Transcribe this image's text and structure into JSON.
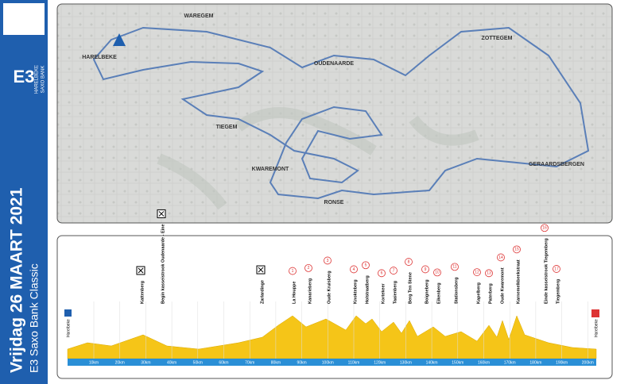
{
  "banner": {
    "date": "Vrijdag 26 MAART 2021",
    "race": "E3 Saxo Bank Classic",
    "logo": "E3",
    "city": "HARELBEKE",
    "sponsor": "SAXO BANK"
  },
  "map": {
    "towns": [
      "WAREGEM",
      "HARELBEKE",
      "ZOTTEGEM",
      "OUDENAARDE",
      "TIEGEM",
      "KWAREMONT",
      "RONSE",
      "GERAARDSBERGEN"
    ]
  },
  "profile": {
    "start": "Harelbeke",
    "finish": "Harelbeke",
    "km": [
      "10km",
      "20km",
      "30km",
      "40km",
      "50km",
      "60km",
      "70km",
      "80km",
      "90km",
      "100km",
      "110km",
      "120km",
      "130km",
      "140km",
      "150km",
      "160km",
      "170km",
      "180km",
      "190km",
      "200km"
    ],
    "climbs": [
      {
        "name": "Kattenberg"
      },
      {
        "name": "Begin kasseistrook Oudenaarde - Eine"
      },
      {
        "name": "Zarlardinge"
      },
      {
        "name": "La Houppe",
        "number": 1
      },
      {
        "name": "Kanarieberg",
        "number": 2
      },
      {
        "name": "Oude Kruisberg",
        "number": 3
      },
      {
        "name": "Knokteberg",
        "number": 4
      },
      {
        "name": "Holstraatberg",
        "number": 5
      },
      {
        "name": "Kortekeer",
        "number": 6
      },
      {
        "name": "Taaienberg",
        "number": 7
      },
      {
        "name": "Berg Ten Stene",
        "number": 8
      },
      {
        "name": "Boigneberg",
        "number": 9
      },
      {
        "name": "Eikenberg",
        "number": 10
      },
      {
        "name": "Stationsberg",
        "number": 11
      },
      {
        "name": "Kapelberg",
        "number": 12
      },
      {
        "name": "Paterberg",
        "number": 13
      },
      {
        "name": "Oude Kwaremont",
        "number": 14
      },
      {
        "name": "Karnemelkbeekstraat",
        "number": 15
      },
      {
        "name": "Einde kasseistrook Tiegemberg",
        "number": 16
      },
      {
        "name": "Tiegemberg",
        "number": 17
      }
    ]
  }
}
